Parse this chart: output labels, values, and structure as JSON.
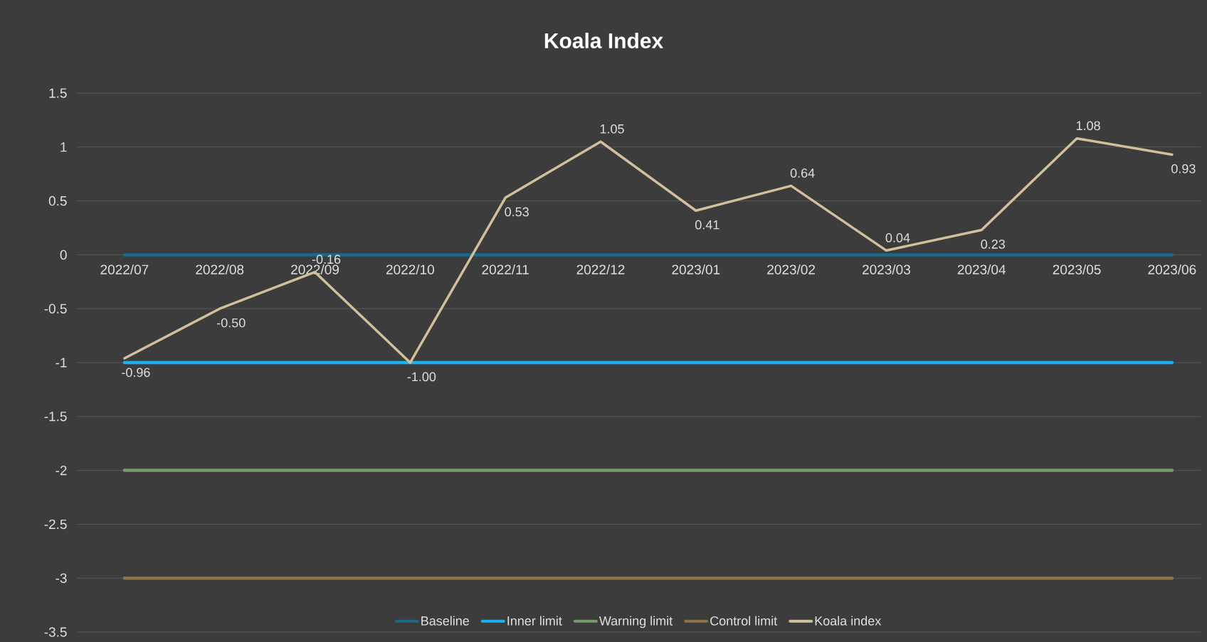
{
  "chart_data": {
    "type": "line",
    "title": "Koala Index",
    "categories": [
      "2022/07",
      "2022/08",
      "2022/09",
      "2022/10",
      "2022/11",
      "2022/12",
      "2023/01",
      "2023/02",
      "2023/03",
      "2023/04",
      "2023/05",
      "2023/06"
    ],
    "series": [
      {
        "name": "Baseline",
        "color": "#1b6a8a",
        "values": [
          0,
          0,
          0,
          0,
          0,
          0,
          0,
          0,
          0,
          0,
          0,
          0
        ]
      },
      {
        "name": "Inner limit",
        "color": "#19b4ee",
        "values": [
          -1,
          -1,
          -1,
          -1,
          -1,
          -1,
          -1,
          -1,
          -1,
          -1,
          -1,
          -1
        ]
      },
      {
        "name": "Warning limit",
        "color": "#78986e",
        "values": [
          -2,
          -2,
          -2,
          -2,
          -2,
          -2,
          -2,
          -2,
          -2,
          -2,
          -2,
          -2
        ]
      },
      {
        "name": "Control limit",
        "color": "#8c7444",
        "values": [
          -3,
          -3,
          -3,
          -3,
          -3,
          -3,
          -3,
          -3,
          -3,
          -3,
          -3,
          -3
        ]
      },
      {
        "name": "Koala index",
        "color": "#d2bf9c",
        "values": [
          -0.96,
          -0.5,
          -0.16,
          -1.0,
          0.53,
          1.05,
          0.41,
          0.64,
          0.04,
          0.23,
          1.08,
          0.93
        ],
        "value_labels": [
          "-0.96",
          "-0.50",
          "-0.16",
          "-1.00",
          "0.53",
          "1.05",
          "0.41",
          "0.64",
          "0.04",
          "0.23",
          "1.08",
          "0.93"
        ]
      }
    ],
    "ylim": [
      -3.5,
      1.5
    ],
    "yticks": [
      -3.5,
      -3,
      -2.5,
      -2,
      -1.5,
      -1,
      -0.5,
      0,
      0.5,
      1,
      1.5
    ],
    "grid": "y",
    "legend": "bottom",
    "marker": "none",
    "line_style": "solid"
  }
}
